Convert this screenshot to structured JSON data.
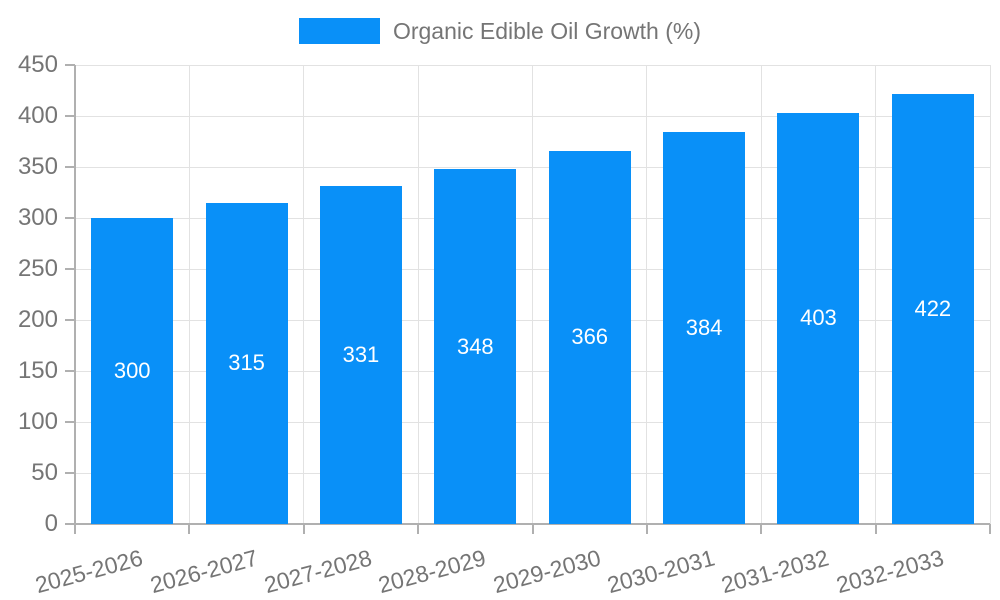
{
  "colors": {
    "bar": "#0990f8",
    "grid": "#e2e2e2",
    "axis_line": "#b0b0b0",
    "axis_text": "#757575",
    "value_text": "#ffffff",
    "background": "#ffffff"
  },
  "chart_data": {
    "type": "bar",
    "title": "",
    "legend_label": "Organic Edible Oil Growth (%)",
    "categories": [
      "2025-2026",
      "2026-2027",
      "2027-2028",
      "2028-2029",
      "2029-2030",
      "2030-2031",
      "2031-2032",
      "2032-2033"
    ],
    "values": [
      300,
      315,
      331,
      348,
      366,
      384,
      403,
      422
    ],
    "xlabel": "",
    "ylabel": "",
    "ylim": [
      0,
      450
    ],
    "yticks": [
      0,
      50,
      100,
      150,
      200,
      250,
      300,
      350,
      400,
      450
    ],
    "grid": true,
    "legend_position": "top-center",
    "value_label_position": "inside-center",
    "x_label_rotation_deg": -15
  }
}
